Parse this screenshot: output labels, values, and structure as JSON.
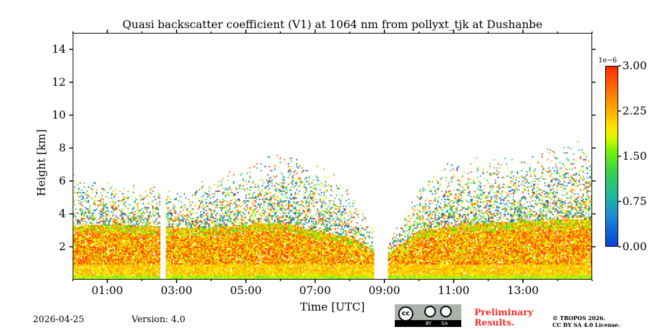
{
  "chart_data": {
    "type": "heatmap",
    "title": "Quasi backscatter coefficient (V1) at 1064 nm from pollyxt_tjk at Dushanbe",
    "xlabel": "Time [UTC]",
    "ylabel": "Height [km]",
    "xlim_hours": [
      0,
      15
    ],
    "ylim": [
      0,
      15
    ],
    "x_ticks": [
      "01:00",
      "03:00",
      "05:00",
      "07:00",
      "09:00",
      "11:00",
      "13:00"
    ],
    "x_tick_hours": [
      1,
      3,
      5,
      7,
      9,
      11,
      13
    ],
    "y_ticks": [
      "2",
      "4",
      "6",
      "8",
      "10",
      "12",
      "14"
    ],
    "y_tick_values": [
      2,
      4,
      6,
      8,
      10,
      12,
      14
    ],
    "colorbar": {
      "min": 0,
      "max": 3.0,
      "scale_label": "1e−6",
      "ticks": [
        "0.00",
        "0.75",
        "1.50",
        "2.25",
        "3.00"
      ],
      "tick_values": [
        0,
        0.75,
        1.5,
        2.25,
        3.0
      ]
    },
    "layer_top_km_hourly": [
      3.3,
      3.4,
      3.3,
      3.2,
      3.2,
      3.4,
      3.5,
      3.0,
      2.6,
      1.5,
      3.0,
      3.3,
      3.5,
      3.6,
      3.7
    ],
    "aerosol_top_km_hourly": [
      6.5,
      6.0,
      6.0,
      5.5,
      6.5,
      7.0,
      8.0,
      7.5,
      5.5,
      2.0,
      6.0,
      7.5,
      7.8,
      7.5,
      8.5
    ],
    "no_data_hours": [
      [
        2.52,
        2.67
      ],
      [
        8.7,
        9.1
      ]
    ]
  },
  "footer": {
    "date": "2026-04-25",
    "version": "Version: 4.0",
    "preliminary": [
      "Preliminary",
      "Results."
    ],
    "copyright": [
      "© TROPOS 2026.",
      "CC BY SA 4.0 License."
    ],
    "cc_labels": [
      "cc",
      "BY",
      "SA"
    ]
  }
}
